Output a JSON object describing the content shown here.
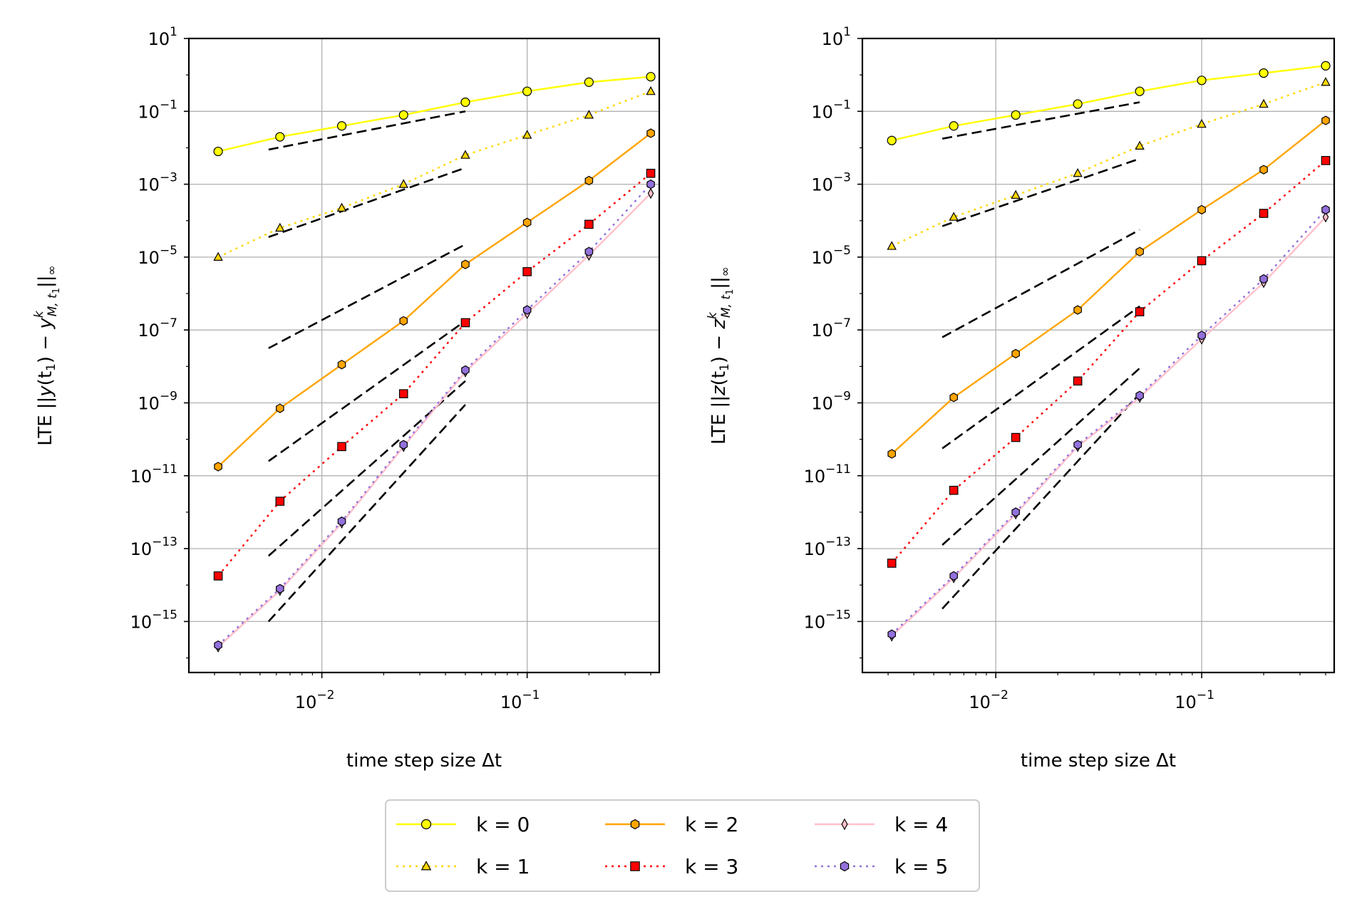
{
  "chart_data": [
    {
      "type": "line",
      "id": "left",
      "ylabel": "LTE ||y(t₁) − yᵏ_{M,t₁}||∞",
      "ylabel_parts": {
        "prefix": "LTE ||",
        "var": "y",
        "tpart": "(t",
        "one": "1",
        "mid": ") − ",
        "sub": "M, t",
        "sub1": "1",
        "sup": "k",
        "end": "||",
        "inf": "∞"
      },
      "xlabel": "time step size Δt",
      "xlim": [
        0.00225,
        0.44
      ],
      "ylim_exp": [
        -16.4,
        1.0
      ],
      "x": [
        0.003125,
        0.00625,
        0.0125,
        0.025,
        0.05,
        0.1,
        0.2,
        0.4
      ],
      "series": [
        {
          "name": "k = 0",
          "log10_values": [
            -2.1,
            -1.7,
            -1.4,
            -1.1,
            -0.75,
            -0.45,
            -0.2,
            -0.05
          ]
        },
        {
          "name": "k = 1",
          "log10_values": [
            -5.0,
            -4.2,
            -3.65,
            -3.0,
            -2.2,
            -1.65,
            -1.1,
            -0.45
          ]
        },
        {
          "name": "k = 2",
          "log10_values": [
            -10.75,
            -9.15,
            -7.95,
            -6.75,
            -5.2,
            -4.05,
            -2.9,
            -1.6
          ]
        },
        {
          "name": "k = 3",
          "log10_values": [
            -13.75,
            -11.7,
            -10.2,
            -8.75,
            -6.8,
            -5.4,
            -4.1,
            -2.7
          ]
        },
        {
          "name": "k = 4",
          "log10_values": [
            -15.7,
            -14.15,
            -12.3,
            -10.2,
            -8.15,
            -6.55,
            -4.95,
            -3.25
          ]
        },
        {
          "name": "k = 5",
          "log10_values": [
            -15.65,
            -14.1,
            -12.25,
            -10.15,
            -8.1,
            -6.45,
            -4.85,
            -3.0
          ]
        }
      ],
      "reference_lines": [
        {
          "order": 1,
          "x": [
            0.0055,
            0.05
          ],
          "log10_y": [
            -2.05,
            -1.0
          ]
        },
        {
          "order": 2,
          "x": [
            0.0055,
            0.05
          ],
          "log10_y": [
            -4.45,
            -2.55
          ]
        },
        {
          "order": 3,
          "x": [
            0.0055,
            0.05
          ],
          "log10_y": [
            -7.5,
            -4.65
          ]
        },
        {
          "order": 4,
          "x": [
            0.0055,
            0.05
          ],
          "log10_y": [
            -10.6,
            -6.75
          ]
        },
        {
          "order": 5,
          "x": [
            0.0055,
            0.05
          ],
          "log10_y": [
            -13.2,
            -8.4
          ]
        },
        {
          "order": 6,
          "x": [
            0.0055,
            0.05
          ],
          "log10_y": [
            -15.0,
            -9.05
          ]
        }
      ]
    },
    {
      "type": "line",
      "id": "right",
      "ylabel": "LTE ||z(t₁) − zᵏ_{M,t₁}||∞",
      "ylabel_parts": {
        "prefix": "LTE ||",
        "var": "z",
        "tpart": "(t",
        "one": "1",
        "mid": ") − ",
        "sub": "M, t",
        "sub1": "1",
        "sup": "k",
        "end": "||",
        "inf": "∞"
      },
      "xlabel": "time step size Δt",
      "xlim": [
        0.00225,
        0.44
      ],
      "ylim_exp": [
        -16.4,
        1.0
      ],
      "x": [
        0.003125,
        0.00625,
        0.0125,
        0.025,
        0.05,
        0.1,
        0.2,
        0.4
      ],
      "series": [
        {
          "name": "k = 0",
          "log10_values": [
            -1.8,
            -1.4,
            -1.1,
            -0.8,
            -0.45,
            -0.15,
            0.05,
            0.25
          ]
        },
        {
          "name": "k = 1",
          "log10_values": [
            -4.7,
            -3.9,
            -3.3,
            -2.7,
            -1.95,
            -1.35,
            -0.8,
            -0.2
          ]
        },
        {
          "name": "k = 2",
          "log10_values": [
            -10.4,
            -8.85,
            -7.65,
            -6.45,
            -4.85,
            -3.7,
            -2.6,
            -1.25
          ]
        },
        {
          "name": "k = 3",
          "log10_values": [
            -13.4,
            -11.4,
            -9.95,
            -8.4,
            -6.5,
            -5.1,
            -3.8,
            -2.35
          ]
        },
        {
          "name": "k = 4",
          "log10_values": [
            -15.4,
            -13.8,
            -12.05,
            -10.2,
            -8.85,
            -7.25,
            -5.7,
            -3.9
          ]
        },
        {
          "name": "k = 5",
          "log10_values": [
            -15.35,
            -13.75,
            -12.0,
            -10.15,
            -8.8,
            -7.15,
            -5.6,
            -3.7
          ]
        }
      ],
      "reference_lines": [
        {
          "order": 1,
          "x": [
            0.0055,
            0.05
          ],
          "log10_y": [
            -1.75,
            -0.75
          ]
        },
        {
          "order": 2,
          "x": [
            0.0055,
            0.05
          ],
          "log10_y": [
            -4.15,
            -2.3
          ]
        },
        {
          "order": 3,
          "x": [
            0.0055,
            0.05
          ],
          "log10_y": [
            -7.2,
            -4.25
          ]
        },
        {
          "order": 4,
          "x": [
            0.0055,
            0.05
          ],
          "log10_y": [
            -10.25,
            -6.35
          ]
        },
        {
          "order": 5,
          "x": [
            0.0055,
            0.05
          ],
          "log10_y": [
            -12.9,
            -8.05
          ]
        },
        {
          "order": 6,
          "x": [
            0.0055,
            0.05
          ],
          "log10_y": [
            -14.65,
            -8.75
          ]
        }
      ]
    }
  ],
  "legend": {
    "placement": "bottom-center",
    "entries": [
      {
        "label": "k = 0",
        "color": "#ffff00",
        "dash": "solid",
        "marker": "circle"
      },
      {
        "label": "k = 1",
        "color": "#ffd700",
        "dash": "dotted",
        "marker": "triangle"
      },
      {
        "label": "k = 2",
        "color": "#ffa500",
        "dash": "solid",
        "marker": "hexagon"
      },
      {
        "label": "k = 3",
        "color": "#ff0000",
        "dash": "dotted",
        "marker": "square"
      },
      {
        "label": "k = 4",
        "color": "#ffc0cb",
        "dash": "solid",
        "marker": "thin_diamond"
      },
      {
        "label": "k = 5",
        "color": "#9370db",
        "dash": "dotted",
        "marker": "hexagon"
      }
    ]
  },
  "styles": {
    "reference_line_color": "#000000",
    "grid_color": "#b0b0b0",
    "marker_edge_color": "#000000"
  }
}
